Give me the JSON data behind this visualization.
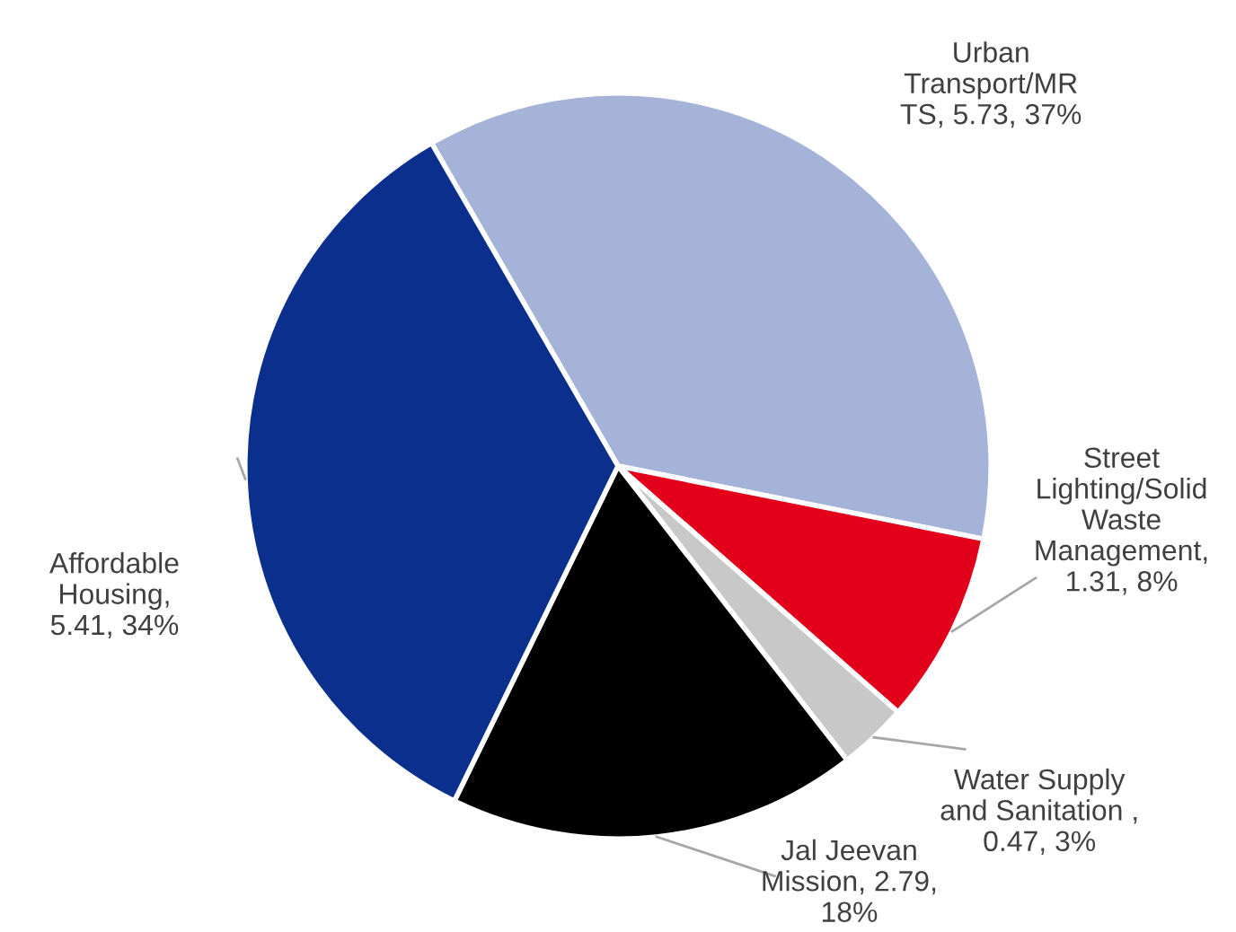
{
  "chart_data": {
    "type": "pie",
    "categories": [
      "Urban\nTransport/MR\nTS",
      "Street\nLighting/Solid\nWaste\nManagement",
      "Water Supply\nand Sanitation",
      "Jal Jeevan\nMission",
      "Affordable\nHousing"
    ],
    "values": [
      5.73,
      1.31,
      0.47,
      2.79,
      5.41
    ],
    "value_labels": [
      "5.73, 37%",
      ",\n1.31, 8%",
      " ,\n0.47, 3%",
      "2.79,\n18%",
      ",\n5.41, 34%"
    ],
    "colors": [
      "#a6b3d9",
      "#e3001b",
      "#c8c8c8",
      "#000000",
      "#0a2f8c"
    ]
  }
}
